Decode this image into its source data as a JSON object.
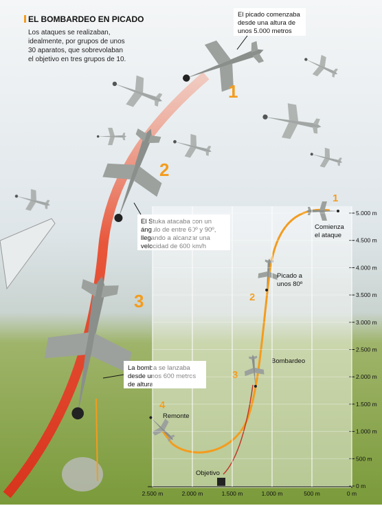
{
  "header": {
    "title": "EL BOMBARDEO EN PICADO",
    "lines": [
      "Los ataques se realizaban,",
      "idealmente, por grupos de unos",
      "30 aparatos, que sobrevolaban",
      "el objetivo en tres grupos de 10."
    ]
  },
  "callouts": [
    {
      "lines": [
        "El picado comenzaba",
        "desde una altura de",
        "unos 5.000 metros"
      ]
    },
    {
      "lines": [
        "El Stuka atacaba con un",
        "ángulo de entre 60º y 90º,",
        "llegando a alcanzar una",
        "velocidad de 600 km/h"
      ]
    },
    {
      "lines": [
        "La bomba se lanzaba",
        "desde unos 600 metros",
        "de altura"
      ]
    }
  ],
  "phases": [
    "1",
    "2",
    "3"
  ],
  "profile": {
    "yticks": [
      "5.000 m",
      "4.500 m",
      "4.000 m",
      "3.500 m",
      "3.000 m",
      "2.500 m",
      "2.000 m",
      "1.500 m",
      "1.000 m",
      "500 m",
      "0 m"
    ],
    "xticks": [
      "2.500 m",
      "2.000 m",
      "1.500 m",
      "1.000 m",
      "500 m",
      "0 m"
    ],
    "steps": [
      {
        "number": "1",
        "lines": [
          "Comienza",
          "el ataque"
        ]
      },
      {
        "number": "2",
        "lines": [
          "Picado a",
          "unos 80º"
        ]
      },
      {
        "number": "3",
        "lines": [
          "Bombardeo"
        ]
      },
      {
        "number": "4",
        "lines": [
          "Remonte"
        ]
      }
    ],
    "target": "Objetivo"
  }
}
